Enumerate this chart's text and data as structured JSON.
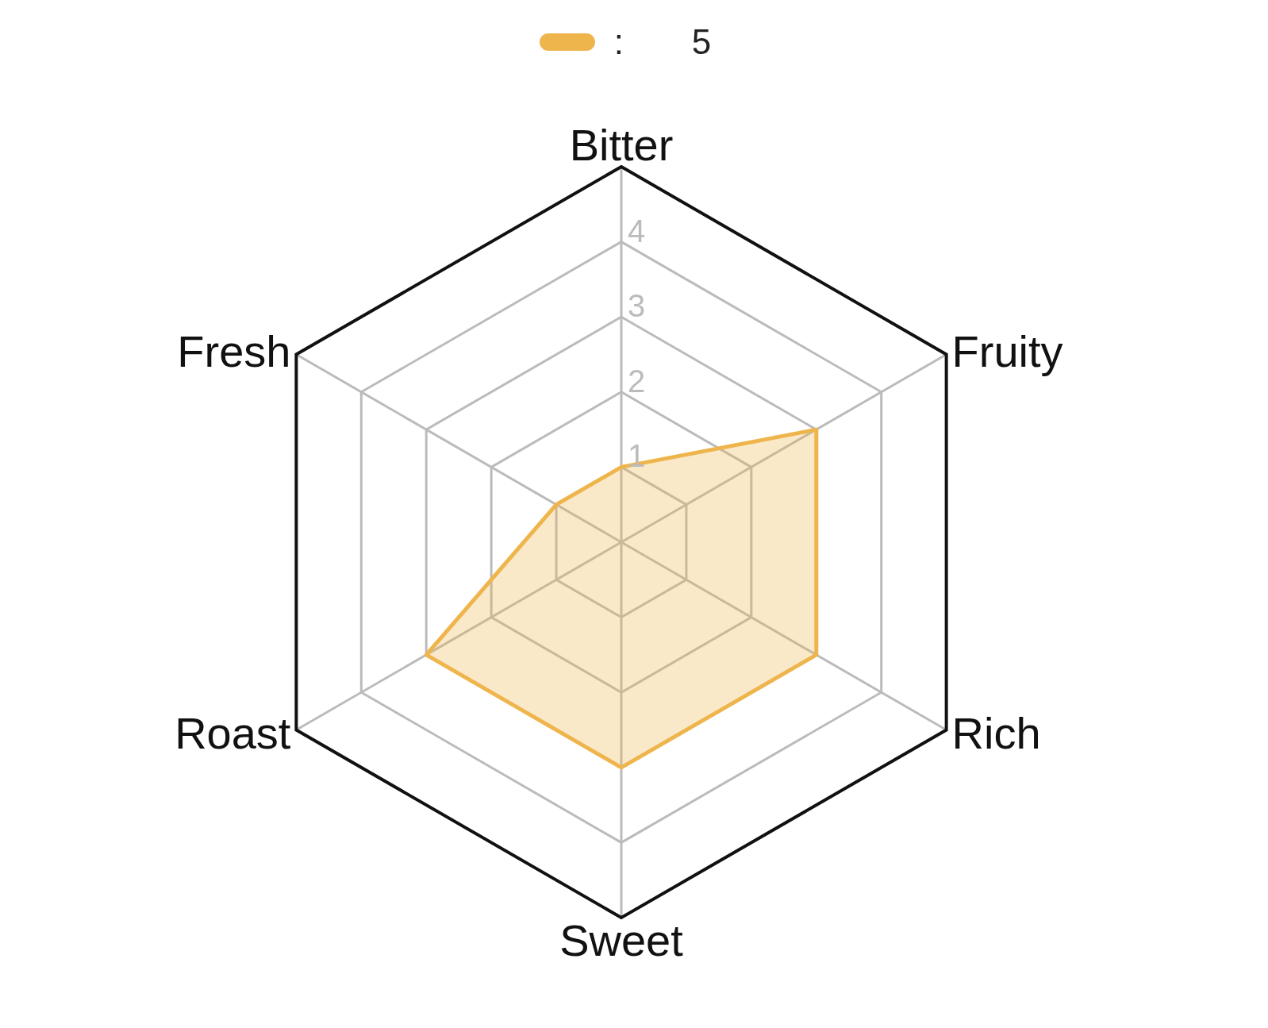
{
  "chart_data": {
    "type": "radar",
    "categories": [
      "Bitter",
      "Fruity",
      "Rich",
      "Sweet",
      "Roast",
      "Fresh"
    ],
    "series": [
      {
        "name": ":       5",
        "color": "#efb54d",
        "values": [
          1,
          3,
          3,
          3,
          3,
          1
        ]
      }
    ],
    "ylim": [
      0,
      5
    ],
    "yticks": [
      1,
      2,
      3,
      4
    ],
    "grid": true,
    "legend": "top"
  }
}
